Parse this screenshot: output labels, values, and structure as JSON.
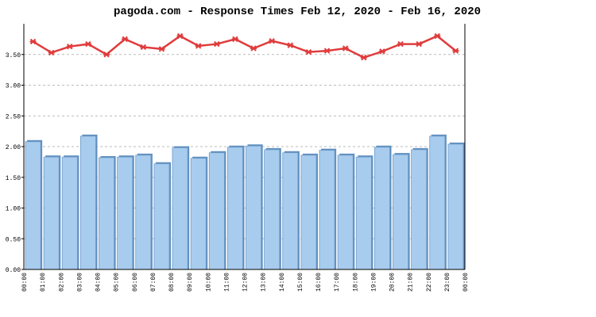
{
  "chart_data": {
    "type": "bar",
    "title": "pagoda.com - Response Times Feb 12, 2020 - Feb 16, 2020",
    "xticks": [
      "00:00",
      "01:00",
      "02:00",
      "03:00",
      "04:00",
      "05:00",
      "06:00",
      "07:00",
      "08:00",
      "09:00",
      "10:00",
      "11:00",
      "12:00",
      "13:00",
      "14:00",
      "15:00",
      "16:00",
      "17:00",
      "18:00",
      "19:00",
      "20:00",
      "21:00",
      "22:00",
      "23:00",
      "00:00"
    ],
    "series": [
      {
        "type": "bar",
        "color": "#a8ccee",
        "values": [
          2.08,
          1.83,
          1.83,
          2.17,
          1.82,
          1.83,
          1.86,
          1.72,
          1.98,
          1.81,
          1.9,
          1.99,
          2.01,
          1.95,
          1.9,
          1.86,
          1.94,
          1.86,
          1.83,
          1.99,
          1.87,
          1.95,
          2.17,
          2.04
        ]
      },
      {
        "type": "line",
        "color": "#e03c3c",
        "values": [
          3.71,
          3.53,
          3.63,
          3.67,
          3.5,
          3.75,
          3.62,
          3.59,
          3.8,
          3.64,
          3.67,
          3.75,
          3.6,
          3.72,
          3.65,
          3.54,
          3.56,
          3.6,
          3.45,
          3.55,
          3.67,
          3.67,
          3.8,
          3.56
        ]
      }
    ],
    "ylim": [
      0,
      4
    ],
    "yticks": [
      {
        "value": 0,
        "label": "0.00"
      },
      {
        "value": 0.5,
        "label": "0.50"
      },
      {
        "value": 1,
        "label": "1.00"
      },
      {
        "value": 1.5,
        "label": "1.50"
      },
      {
        "value": 2,
        "label": "2.00"
      },
      {
        "value": 2.5,
        "label": "2.50"
      },
      {
        "value": 3,
        "label": "3.00"
      },
      {
        "value": 3.5,
        "label": "3.50"
      }
    ],
    "grid": true
  }
}
